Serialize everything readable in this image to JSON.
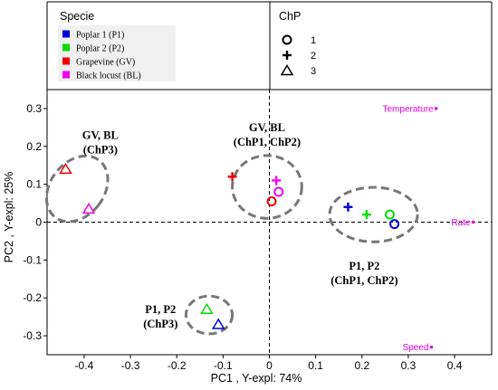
{
  "chart_data": {
    "type": "scatter",
    "xlabel": "PC1   ,  Y-expl: 74%",
    "ylabel": "PC2   ,  Y-expl: 25%",
    "xlim": [
      -0.48,
      0.48
    ],
    "ylim": [
      -0.35,
      0.35
    ],
    "x_ticks": [
      -0.4,
      -0.3,
      -0.2,
      -0.1,
      0,
      0.1,
      0.2,
      0.3,
      0.4
    ],
    "x_tick_labels": [
      "-0.4",
      "-0.3",
      "-0.2",
      "-0.1",
      "0",
      "0.1",
      "0.2",
      "0.3",
      "0.4"
    ],
    "y_ticks": [
      0.3,
      0.2,
      0.1,
      0,
      -0.1,
      -0.2,
      -0.3
    ],
    "y_tick_labels": [
      "0.3",
      "0.2",
      "0.1",
      "0",
      "-0.1",
      "-0.2",
      "-0.3"
    ],
    "grid": false,
    "reference_lines": "dashed lines at x=0 and y=0",
    "legend_species": {
      "title": "Specie",
      "items": [
        {
          "label": "Poplar 1 (P1)",
          "key": "P1",
          "color": "#0000dd"
        },
        {
          "label": "Poplar 2 (P2)",
          "key": "P2",
          "color": "#00dd00"
        },
        {
          "label": "Grapevine (GV)",
          "key": "GV",
          "color": "#ee0000"
        },
        {
          "label": "Black locust (BL)",
          "key": "BL",
          "color": "#ee00ee"
        }
      ]
    },
    "legend_chp": {
      "title": "ChP",
      "items": [
        {
          "label": "1",
          "marker": "circle"
        },
        {
          "label": "2",
          "marker": "plus"
        },
        {
          "label": "3",
          "marker": "triangle"
        }
      ]
    },
    "points": [
      {
        "species": "P1",
        "chp": "1",
        "x": 0.27,
        "y": -0.005
      },
      {
        "species": "P2",
        "chp": "1",
        "x": 0.26,
        "y": 0.02
      },
      {
        "species": "P1",
        "chp": "2",
        "x": 0.17,
        "y": 0.04
      },
      {
        "species": "P2",
        "chp": "2",
        "x": 0.21,
        "y": 0.02
      },
      {
        "species": "GV",
        "chp": "1",
        "x": 0.005,
        "y": 0.055
      },
      {
        "species": "BL",
        "chp": "1",
        "x": 0.02,
        "y": 0.08
      },
      {
        "species": "GV",
        "chp": "2",
        "x": -0.08,
        "y": 0.12
      },
      {
        "species": "BL",
        "chp": "2",
        "x": 0.015,
        "y": 0.11
      },
      {
        "species": "GV",
        "chp": "3",
        "x": -0.44,
        "y": 0.14
      },
      {
        "species": "BL",
        "chp": "3",
        "x": -0.39,
        "y": 0.035
      },
      {
        "species": "P2",
        "chp": "3",
        "x": -0.135,
        "y": -0.23
      },
      {
        "species": "P1",
        "chp": "3",
        "x": -0.11,
        "y": -0.27
      }
    ],
    "variables": [
      {
        "label": "Temperature",
        "x": 0.36,
        "y": 0.3
      },
      {
        "label": "Rate",
        "x": 0.44,
        "y": 0.0
      },
      {
        "label": "Speed",
        "x": 0.35,
        "y": -0.33
      }
    ],
    "groups": [
      {
        "lines": [
          "GV,  BL",
          "(ChP3)"
        ],
        "cx": -0.415,
        "cy": 0.088,
        "rx": 0.058,
        "ry": 0.095,
        "rot": 38,
        "label_x": -0.365,
        "label_y": 0.22
      },
      {
        "lines": [
          "GV,  BL",
          "(ChP1,  ChP2)"
        ],
        "cx": -0.005,
        "cy": 0.093,
        "rx": 0.075,
        "ry": 0.083,
        "rot": 0,
        "label_x": -0.005,
        "label_y": 0.24
      },
      {
        "lines": [
          "P1,  P2",
          "(ChP1,  ChP2)"
        ],
        "cx": 0.225,
        "cy": 0.02,
        "rx": 0.095,
        "ry": 0.072,
        "rot": 0,
        "label_x": 0.205,
        "label_y": -0.125
      },
      {
        "lines": [
          "P1,  P2",
          "(ChP3)"
        ],
        "cx": -0.13,
        "cy": -0.245,
        "rx": 0.05,
        "ry": 0.05,
        "rot": 0,
        "label_x": -0.235,
        "label_y": -0.24
      }
    ]
  }
}
